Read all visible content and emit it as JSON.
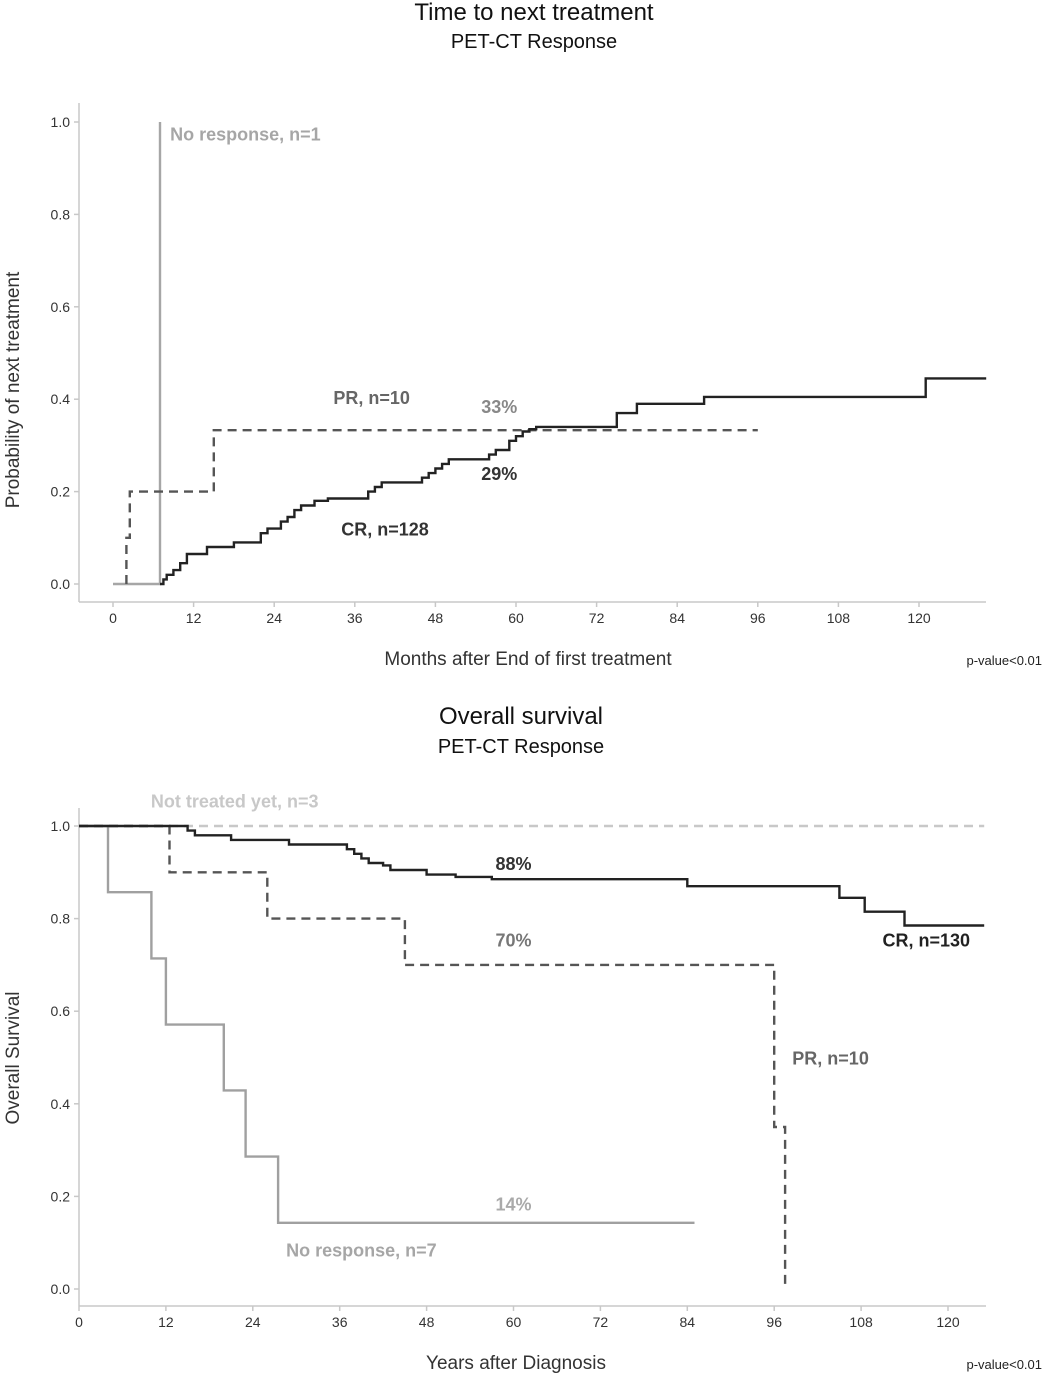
{
  "chart_data": [
    {
      "type": "line",
      "subtype": "kaplan-meier-step",
      "title": "Time to next treatment",
      "subtitle": "PET-CT Response",
      "xlabel": "Months after End of first treatment",
      "ylabel": "Probability of next treatment",
      "xlim": [
        -4,
        130
      ],
      "ylim": [
        -0.04,
        1.04
      ],
      "xticks": [
        0,
        12,
        24,
        36,
        48,
        60,
        72,
        84,
        96,
        108,
        120
      ],
      "yticks": [
        "0.0",
        "0.2",
        "0.4",
        "0.6",
        "0.8",
        "1.0"
      ],
      "ytick_values": [
        0,
        0.2,
        0.4,
        0.6,
        0.8,
        1.0
      ],
      "grid": false,
      "legend": "none (inline labels)",
      "footnote": "p-value<0.01",
      "series": [
        {
          "name": "No response, n=1",
          "color": "#a6a6a6",
          "style": "solid",
          "x": [
            0,
            7,
            7
          ],
          "y": [
            0,
            0,
            1.0
          ]
        },
        {
          "name": "PR, n=10",
          "color": "#555555",
          "style": "dashed",
          "x": [
            2,
            2,
            2.5,
            2.5,
            15,
            15,
            96
          ],
          "y": [
            0,
            0.1,
            0.1,
            0.2,
            0.2,
            0.333,
            0.333
          ]
        },
        {
          "name": "CR, n=128",
          "color": "#222222",
          "style": "solid",
          "x": [
            7,
            7.5,
            7.5,
            8,
            8,
            9,
            9,
            10,
            10,
            11,
            11,
            14,
            14,
            18,
            18,
            22,
            22,
            23,
            23,
            25,
            25,
            26,
            26,
            27,
            27,
            28,
            28,
            30,
            30,
            32,
            32,
            38,
            38,
            39,
            39,
            40,
            40,
            46,
            46,
            47,
            47,
            48,
            48,
            49,
            49,
            50,
            50,
            56,
            56,
            57,
            57,
            59,
            59,
            60,
            60,
            61,
            61,
            62,
            62,
            63,
            63,
            75,
            75,
            78,
            78,
            88,
            88,
            121,
            121,
            130
          ],
          "y": [
            0,
            0,
            0.01,
            0.01,
            0.02,
            0.02,
            0.03,
            0.03,
            0.045,
            0.045,
            0.065,
            0.065,
            0.08,
            0.08,
            0.09,
            0.09,
            0.11,
            0.11,
            0.12,
            0.12,
            0.135,
            0.135,
            0.145,
            0.145,
            0.16,
            0.16,
            0.17,
            0.17,
            0.18,
            0.18,
            0.185,
            0.185,
            0.2,
            0.2,
            0.21,
            0.21,
            0.22,
            0.22,
            0.23,
            0.23,
            0.24,
            0.24,
            0.25,
            0.25,
            0.26,
            0.26,
            0.27,
            0.27,
            0.28,
            0.28,
            0.29,
            0.29,
            0.31,
            0.31,
            0.32,
            0.32,
            0.33,
            0.33,
            0.335,
            0.335,
            0.34,
            0.34,
            0.37,
            0.37,
            0.39,
            0.39,
            0.405,
            0.405,
            0.445,
            0.445
          ]
        }
      ],
      "annotations": [
        {
          "text": "No response, n=1",
          "x": 8.5,
          "y": 0.96,
          "color": "#a6a6a6",
          "anchor": "start"
        },
        {
          "text": "PR, n=10",
          "x": 38.5,
          "y": 0.39,
          "color": "#666666",
          "anchor": "middle"
        },
        {
          "text": "33%",
          "x": 57.5,
          "y": 0.37,
          "color": "#888888",
          "anchor": "middle"
        },
        {
          "text": "29%",
          "x": 57.5,
          "y": 0.225,
          "color": "#333333",
          "anchor": "middle"
        },
        {
          "text": "CR, n=128",
          "x": 40.5,
          "y": 0.105,
          "color": "#333333",
          "anchor": "middle"
        }
      ]
    },
    {
      "type": "line",
      "subtype": "kaplan-meier-step",
      "title": "Overall survival",
      "subtitle": "PET-CT Response",
      "xlabel": "Years after Diagnosis",
      "ylabel": "Overall Survival",
      "xlim": [
        0,
        125
      ],
      "ylim": [
        -0.04,
        1.04
      ],
      "xticks": [
        0,
        12,
        24,
        36,
        48,
        60,
        72,
        84,
        96,
        108,
        120
      ],
      "yticks": [
        "0.0",
        "0.2",
        "0.4",
        "0.6",
        "0.8",
        "1.0"
      ],
      "ytick_values": [
        0,
        0.2,
        0.4,
        0.6,
        0.8,
        1.0
      ],
      "grid": false,
      "legend": "none (inline labels)",
      "footnote": "p-value<0.01",
      "series": [
        {
          "name": "Not treated yet, n=3",
          "color": "#c8c8c8",
          "style": "dashed",
          "x": [
            0,
            125
          ],
          "y": [
            1.0,
            1.0
          ]
        },
        {
          "name": "No response, n=7",
          "color": "#a0a0a0",
          "style": "solid",
          "x": [
            0,
            4,
            4,
            10,
            10,
            12,
            12,
            20,
            20,
            23,
            23,
            27.5,
            27.5,
            85
          ],
          "y": [
            1.0,
            1.0,
            0.857,
            0.857,
            0.714,
            0.714,
            0.571,
            0.571,
            0.429,
            0.429,
            0.286,
            0.286,
            0.143,
            0.143
          ]
        },
        {
          "name": "PR, n=10",
          "color": "#555555",
          "style": "dashed",
          "x": [
            0,
            12.5,
            12.5,
            26,
            26,
            45,
            45,
            96,
            96,
            97.5,
            97.5
          ],
          "y": [
            1.0,
            1.0,
            0.9,
            0.9,
            0.8,
            0.8,
            0.7,
            0.7,
            0.35,
            0.35,
            0.0
          ]
        },
        {
          "name": "CR, n=130",
          "color": "#222222",
          "style": "solid",
          "x": [
            0,
            15,
            15,
            16,
            16,
            21,
            21,
            29,
            29,
            37,
            37,
            38,
            38,
            39,
            39,
            40,
            40,
            42,
            42,
            43,
            43,
            48,
            48,
            52,
            52,
            57,
            57,
            84,
            84,
            105,
            105,
            108.5,
            108.5,
            114,
            114,
            125
          ],
          "y": [
            1.0,
            1.0,
            0.99,
            0.99,
            0.98,
            0.98,
            0.97,
            0.97,
            0.96,
            0.96,
            0.95,
            0.95,
            0.94,
            0.94,
            0.93,
            0.93,
            0.92,
            0.92,
            0.915,
            0.915,
            0.905,
            0.905,
            0.895,
            0.895,
            0.89,
            0.89,
            0.885,
            0.885,
            0.87,
            0.87,
            0.845,
            0.845,
            0.815,
            0.815,
            0.785,
            0.785
          ]
        }
      ],
      "annotations": [
        {
          "text": "Not treated yet, n=3",
          "x": 21.5,
          "y": 1.04,
          "color": "#c8c8c8",
          "anchor": "middle"
        },
        {
          "text": "88%",
          "x": 60,
          "y": 0.905,
          "color": "#333333",
          "anchor": "middle"
        },
        {
          "text": "70%",
          "x": 60,
          "y": 0.74,
          "color": "#777777",
          "anchor": "middle"
        },
        {
          "text": "CR, n=130",
          "x": 117,
          "y": 0.74,
          "color": "#222222",
          "anchor": "middle"
        },
        {
          "text": "PR, n=10",
          "x": 98.5,
          "y": 0.485,
          "color": "#666666",
          "anchor": "start"
        },
        {
          "text": "14%",
          "x": 60,
          "y": 0.17,
          "color": "#aaaaaa",
          "anchor": "middle"
        },
        {
          "text": "No response, n=7",
          "x": 39,
          "y": 0.07,
          "color": "#a6a6a6",
          "anchor": "middle"
        }
      ]
    }
  ]
}
